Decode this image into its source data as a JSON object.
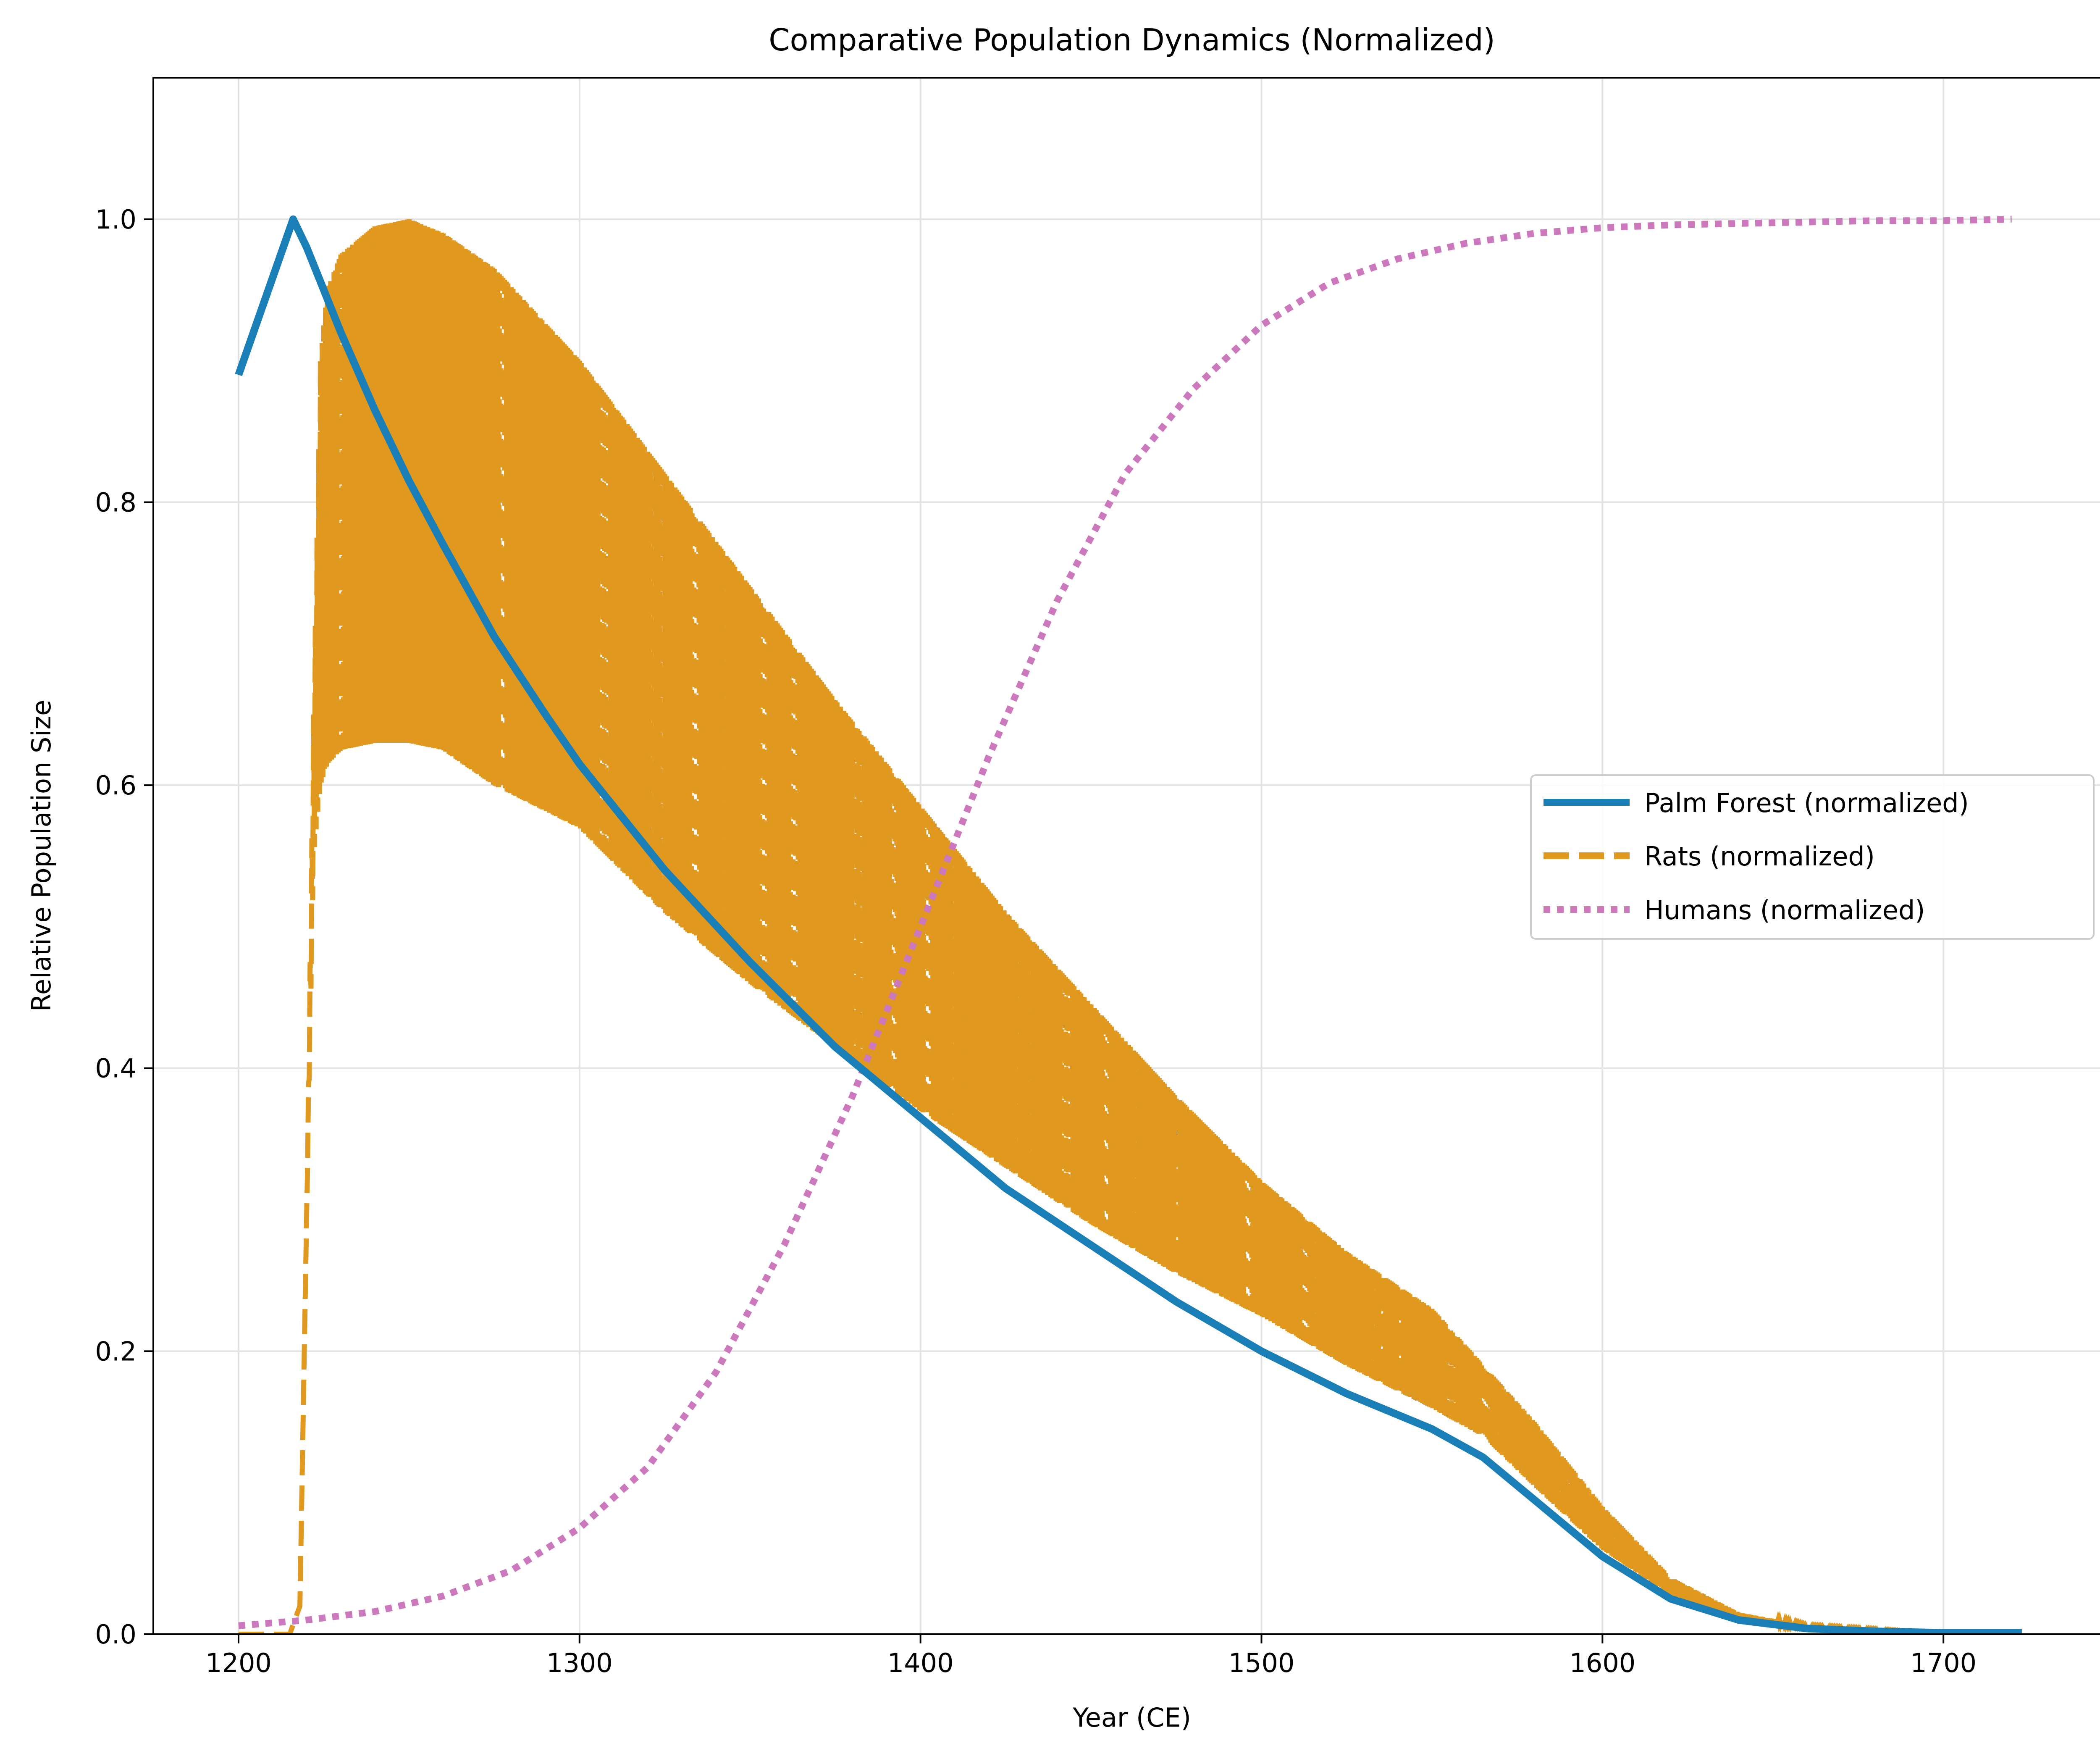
{
  "chart_data": {
    "type": "line",
    "title": "Comparative Population Dynamics (Normalized)",
    "xlabel": "Year (CE)",
    "ylabel": "Relative Population Size",
    "xlim": [
      1175,
      1749
    ],
    "ylim": [
      0,
      1.1
    ],
    "xticks": [
      1200,
      1300,
      1400,
      1500,
      1600,
      1700
    ],
    "yticks": [
      0.0,
      0.2,
      0.4,
      0.6,
      0.8,
      1.0
    ],
    "xtick_labels": [
      "1200",
      "1300",
      "1400",
      "1500",
      "1600",
      "1700"
    ],
    "ytick_labels": [
      "0.0",
      "0.2",
      "0.4",
      "0.6",
      "0.8",
      "1.0"
    ],
    "grid": true,
    "legend_position": "center-right",
    "series": [
      {
        "name": "Palm Forest (normalized)",
        "color": "#1a7fb7",
        "style": "solid",
        "x": [
          1200,
          1216,
          1220,
          1230,
          1240,
          1250,
          1260,
          1275,
          1290,
          1300,
          1325,
          1350,
          1375,
          1400,
          1425,
          1450,
          1475,
          1500,
          1525,
          1550,
          1565,
          1580,
          1600,
          1620,
          1640,
          1660,
          1680,
          1700,
          1723
        ],
        "y": [
          0.89,
          1.0,
          0.98,
          0.92,
          0.865,
          0.815,
          0.77,
          0.705,
          0.65,
          0.615,
          0.54,
          0.475,
          0.415,
          0.365,
          0.315,
          0.275,
          0.235,
          0.2,
          0.17,
          0.145,
          0.125,
          0.095,
          0.055,
          0.025,
          0.01,
          0.004,
          0.002,
          0.001,
          0.001
        ]
      },
      {
        "name": "Rats (normalized)",
        "color": "#e0981e",
        "style": "dashed",
        "x": [
          1200,
          1210,
          1215,
          1218,
          1220,
          1222,
          1224,
          1226,
          1230,
          1240,
          1250,
          1260,
          1275,
          1300,
          1325,
          1350,
          1375,
          1400,
          1425,
          1450,
          1475,
          1500,
          1525,
          1550,
          1565,
          1580,
          1600,
          1620,
          1640,
          1660,
          1680,
          1700,
          1720
        ],
        "y_upper": [
          0.0,
          0.0,
          0.0,
          0.02,
          0.3,
          0.65,
          0.9,
          0.95,
          0.975,
          0.995,
          1.0,
          0.99,
          0.965,
          0.9,
          0.82,
          0.74,
          0.66,
          0.585,
          0.51,
          0.445,
          0.38,
          0.32,
          0.27,
          0.23,
          0.19,
          0.15,
          0.09,
          0.04,
          0.015,
          0.006,
          0.003,
          0.001,
          0.0
        ],
        "y_lower": [
          0.0,
          0.0,
          0.0,
          0.02,
          0.3,
          0.55,
          0.6,
          0.615,
          0.625,
          0.63,
          0.63,
          0.625,
          0.6,
          0.57,
          0.51,
          0.46,
          0.415,
          0.37,
          0.33,
          0.29,
          0.255,
          0.225,
          0.19,
          0.16,
          0.14,
          0.105,
          0.06,
          0.028,
          0.011,
          0.005,
          0.002,
          0.001,
          0.0
        ]
      },
      {
        "name": "Humans (normalized)",
        "color": "#cc78bc",
        "style": "dotted",
        "x": [
          1200,
          1220,
          1240,
          1260,
          1280,
          1300,
          1320,
          1340,
          1360,
          1380,
          1400,
          1420,
          1440,
          1460,
          1480,
          1500,
          1520,
          1540,
          1560,
          1580,
          1600,
          1620,
          1640,
          1660,
          1680,
          1700,
          1720
        ],
        "y": [
          0.006,
          0.01,
          0.016,
          0.027,
          0.045,
          0.075,
          0.118,
          0.185,
          0.275,
          0.38,
          0.5,
          0.62,
          0.73,
          0.82,
          0.88,
          0.925,
          0.955,
          0.972,
          0.983,
          0.99,
          0.994,
          0.996,
          0.997,
          0.998,
          0.999,
          0.999,
          1.0
        ]
      }
    ]
  }
}
